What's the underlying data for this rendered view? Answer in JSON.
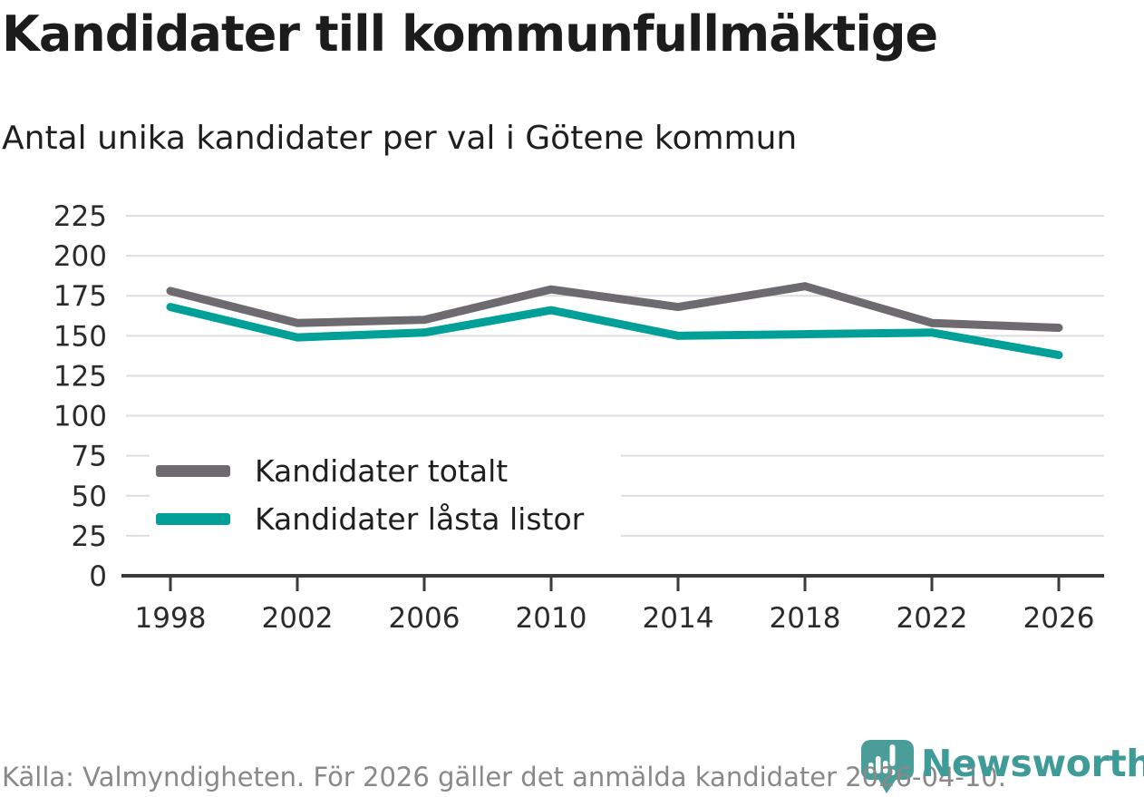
{
  "header": {
    "title": "Kandidater till kommunfullmäktige",
    "subtitle": "Antal unika kandidater per val i Götene kommun"
  },
  "chart_data": {
    "type": "line",
    "x": [
      1998,
      2002,
      2006,
      2010,
      2014,
      2018,
      2022,
      2026
    ],
    "series": [
      {
        "name": "Kandidater totalt",
        "color": "#6d6a70",
        "values": [
          178,
          158,
          160,
          179,
          168,
          181,
          158,
          155
        ]
      },
      {
        "name": "Kandidater låsta listor",
        "color": "#00a099",
        "values": [
          168,
          149,
          152,
          166,
          150,
          151,
          152,
          138
        ]
      }
    ],
    "title": "Kandidater till kommunfullmäktige",
    "subtitle": "Antal unika kandidater per val i Götene kommun",
    "xlabel": "",
    "ylabel": "",
    "ylim": [
      0,
      225
    ],
    "ytick_step": 25,
    "grid": true,
    "legend_position": "inside-lower-left"
  },
  "footer": {
    "source": "Källa: Valmyndigheten. För 2026 gäller det anmälda kandidater 2026-04-10.",
    "brand": "Newsworthy"
  },
  "icons": {
    "logo": "newsworthy-pin-barchart-icon"
  },
  "colors": {
    "series_total": "#6d6a70",
    "series_locked": "#00a099",
    "grid": "#dedede",
    "axis": "#3a3a3a",
    "tick_text": "#2b2b2b",
    "title_text": "#1c1c1c",
    "footer_text": "#898989",
    "brand_teal": "#3e9b97",
    "pin_fill": "#4a9d98"
  }
}
